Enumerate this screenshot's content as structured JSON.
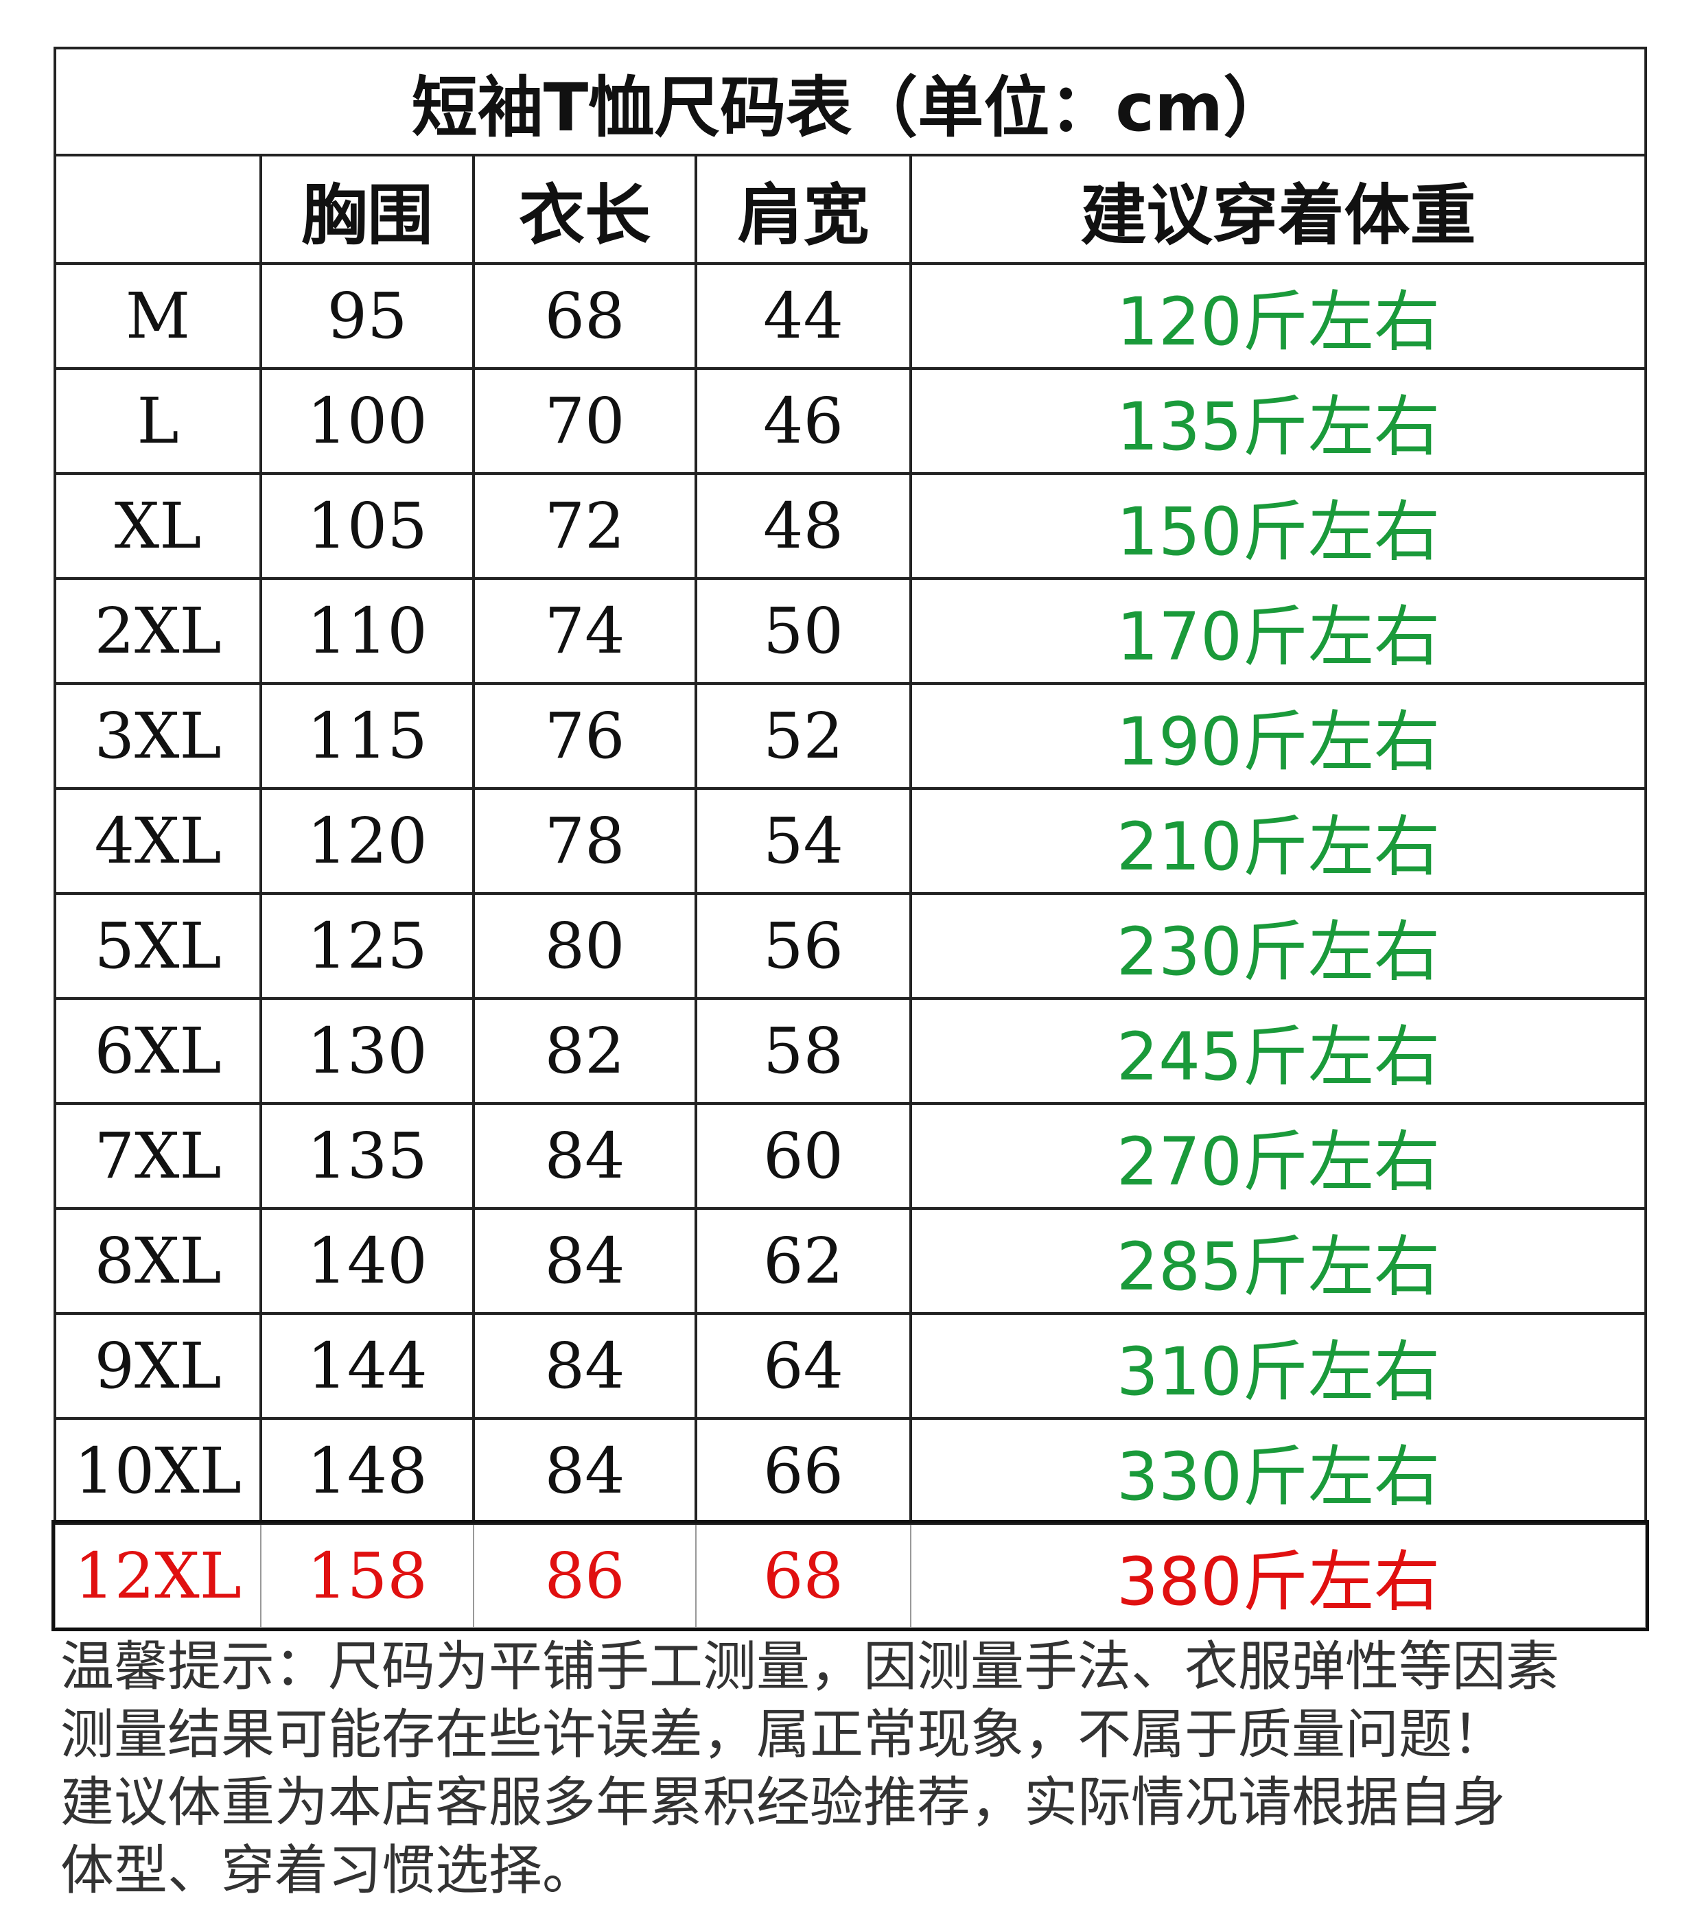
{
  "title": "短袖T恤尺码表（单位：cm）",
  "headers": [
    "",
    "胸围",
    "衣长",
    "肩宽",
    "建议穿着体重"
  ],
  "rows": [
    [
      "M",
      "95",
      "68",
      "44",
      "120斤左右"
    ],
    [
      "L",
      "100",
      "70",
      "46",
      "135斤左右"
    ],
    [
      "XL",
      "105",
      "72",
      "48",
      "150斤左右"
    ],
    [
      "2XL",
      "110",
      "74",
      "50",
      "170斤左右"
    ],
    [
      "3XL",
      "115",
      "76",
      "52",
      "190斤左右"
    ],
    [
      "4XL",
      "120",
      "78",
      "54",
      "210斤左右"
    ],
    [
      "5XL",
      "125",
      "80",
      "56",
      "230斤左右"
    ],
    [
      "6XL",
      "130",
      "82",
      "58",
      "245斤左右"
    ],
    [
      "7XL",
      "135",
      "84",
      "60",
      "270斤左右"
    ],
    [
      "8XL",
      "140",
      "84",
      "62",
      "285斤左右"
    ],
    [
      "9XL",
      "144",
      "84",
      "64",
      "310斤左右"
    ],
    [
      "10XL",
      "148",
      "84",
      "66",
      "330斤左右"
    ],
    [
      "12XL",
      "158",
      "86",
      "68",
      "380斤左右"
    ]
  ],
  "highlighted_row": "12XL",
  "colors": {
    "weight_text": "#1a9a3a",
    "highlight": "#e01010"
  },
  "note_lines": [
    "温馨提示：尺码为平铺手工测量，因测量手法、衣服弹性等因素",
    "测量结果可能存在些许误差，属正常现象，不属于质量问题！",
    "建议体重为本店客服多年累积经验推荐，实际情况请根据自身",
    "体型、穿着习惯选择。"
  ]
}
